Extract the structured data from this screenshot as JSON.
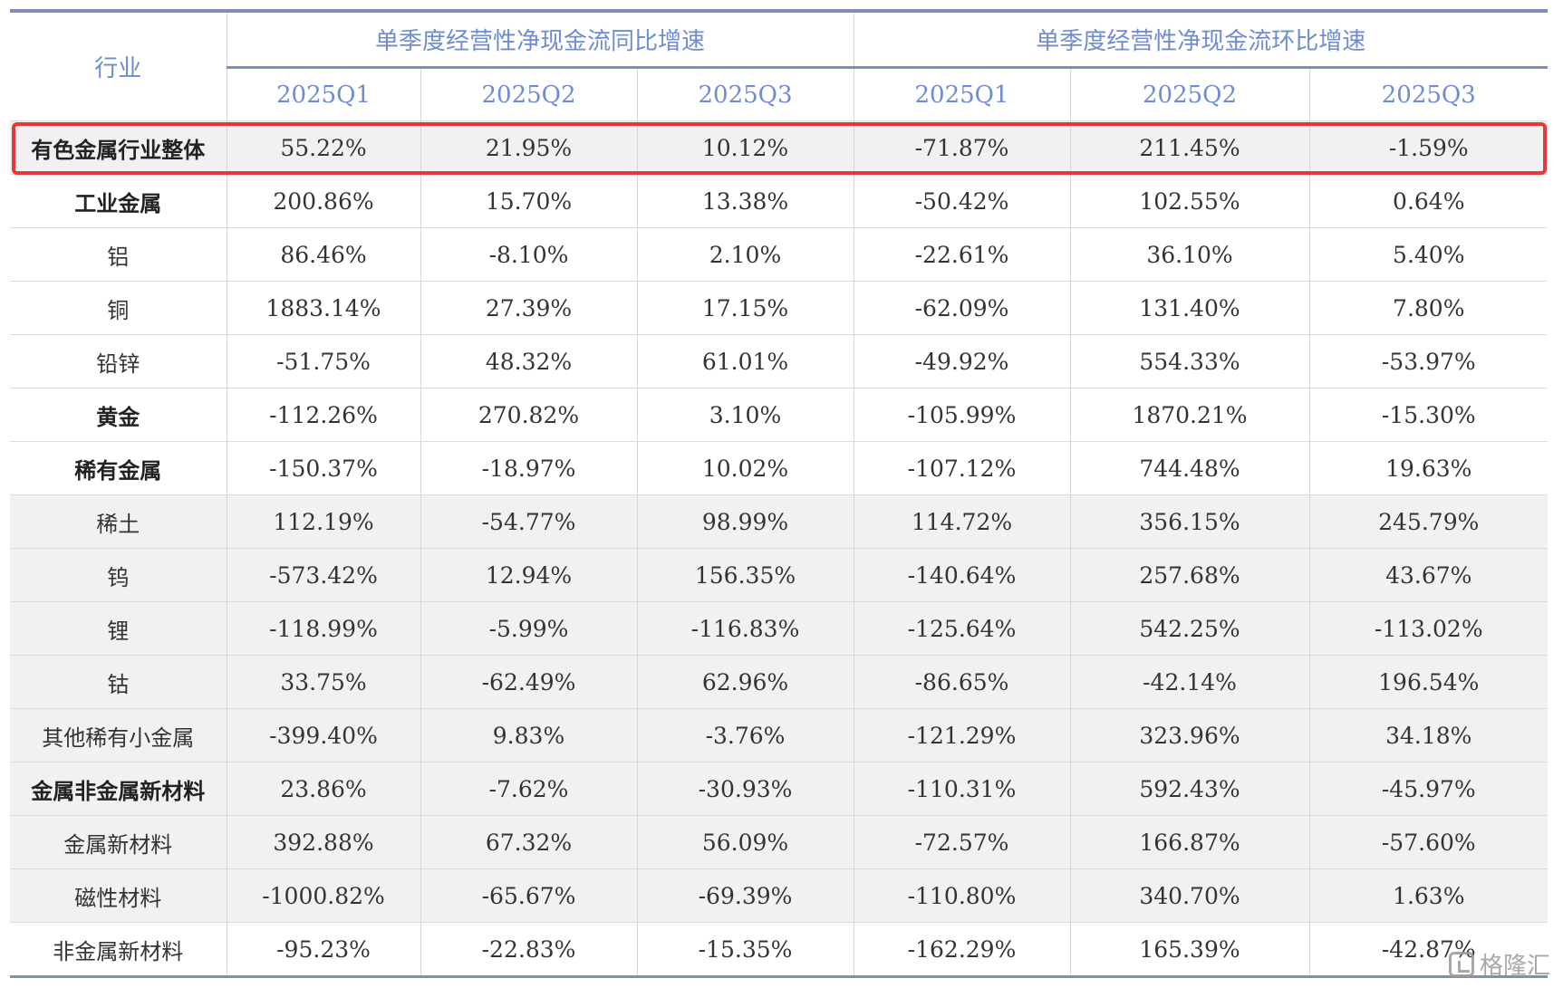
{
  "header": {
    "industry_label": "行业",
    "group_yoy": "单季度经营性净现金流同比增速",
    "group_qoq": "单季度经营性净现金流环比增速",
    "quarters": [
      "2025Q1",
      "2025Q2",
      "2025Q3",
      "2025Q1",
      "2025Q2",
      "2025Q3"
    ]
  },
  "rows": [
    {
      "name": "有色金属行业整体",
      "bold": true,
      "shade": true,
      "values": [
        "55.22%",
        "21.95%",
        "10.12%",
        "-71.87%",
        "211.45%",
        "-1.59%"
      ]
    },
    {
      "name": "工业金属",
      "bold": true,
      "shade": false,
      "values": [
        "200.86%",
        "15.70%",
        "13.38%",
        "-50.42%",
        "102.55%",
        "0.64%"
      ]
    },
    {
      "name": "铝",
      "bold": false,
      "shade": false,
      "values": [
        "86.46%",
        "-8.10%",
        "2.10%",
        "-22.61%",
        "36.10%",
        "5.40%"
      ]
    },
    {
      "name": "铜",
      "bold": false,
      "shade": false,
      "values": [
        "1883.14%",
        "27.39%",
        "17.15%",
        "-62.09%",
        "131.40%",
        "7.80%"
      ]
    },
    {
      "name": "铅锌",
      "bold": false,
      "shade": false,
      "values": [
        "-51.75%",
        "48.32%",
        "61.01%",
        "-49.92%",
        "554.33%",
        "-53.97%"
      ]
    },
    {
      "name": "黄金",
      "bold": true,
      "shade": false,
      "values": [
        "-112.26%",
        "270.82%",
        "3.10%",
        "-105.99%",
        "1870.21%",
        "-15.30%"
      ]
    },
    {
      "name": "稀有金属",
      "bold": true,
      "shade": false,
      "values": [
        "-150.37%",
        "-18.97%",
        "10.02%",
        "-107.12%",
        "744.48%",
        "19.63%"
      ]
    },
    {
      "name": "稀土",
      "bold": false,
      "shade": true,
      "values": [
        "112.19%",
        "-54.77%",
        "98.99%",
        "114.72%",
        "356.15%",
        "245.79%"
      ]
    },
    {
      "name": "钨",
      "bold": false,
      "shade": true,
      "values": [
        "-573.42%",
        "12.94%",
        "156.35%",
        "-140.64%",
        "257.68%",
        "43.67%"
      ]
    },
    {
      "name": "锂",
      "bold": false,
      "shade": true,
      "values": [
        "-118.99%",
        "-5.99%",
        "-116.83%",
        "-125.64%",
        "542.25%",
        "-113.02%"
      ]
    },
    {
      "name": "钴",
      "bold": false,
      "shade": true,
      "values": [
        "33.75%",
        "-62.49%",
        "62.96%",
        "-86.65%",
        "-42.14%",
        "196.54%"
      ]
    },
    {
      "name": "其他稀有小金属",
      "bold": false,
      "shade": true,
      "values": [
        "-399.40%",
        "9.83%",
        "-3.76%",
        "-121.29%",
        "323.96%",
        "34.18%"
      ]
    },
    {
      "name": "金属非金属新材料",
      "bold": true,
      "shade": true,
      "values": [
        "23.86%",
        "-7.62%",
        "-30.93%",
        "-110.31%",
        "592.43%",
        "-45.97%"
      ]
    },
    {
      "name": "金属新材料",
      "bold": false,
      "shade": true,
      "values": [
        "392.88%",
        "67.32%",
        "56.09%",
        "-72.57%",
        "166.87%",
        "-57.60%"
      ]
    },
    {
      "name": "磁性材料",
      "bold": false,
      "shade": true,
      "values": [
        "-1000.82%",
        "-65.67%",
        "-69.39%",
        "-110.80%",
        "340.70%",
        "1.63%"
      ]
    },
    {
      "name": "非金属新材料",
      "bold": false,
      "shade": false,
      "values": [
        "-95.23%",
        "-22.83%",
        "-15.35%",
        "-162.29%",
        "165.39%",
        "-42.87%"
      ]
    }
  ],
  "watermark": {
    "text": "格隆汇",
    "icon": "logo-mark-icon"
  },
  "colors": {
    "header_text": "#6f8ccf",
    "rule": "#7b8fbf",
    "highlight": "#e8363c",
    "shade": "#f1f1f1"
  }
}
